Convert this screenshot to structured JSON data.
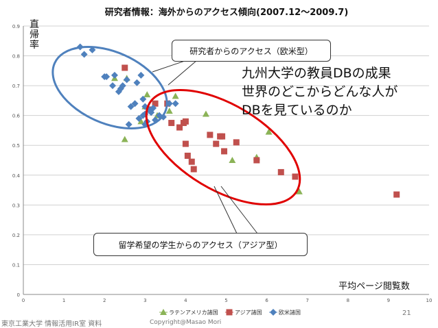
{
  "chart_data": {
    "type": "scatter",
    "title": "研究者情報：海外からのアクセス傾向(2007.12〜2009.7)",
    "ylabel": "直帰率",
    "xlabel": "平均ページ閲覧数",
    "xlim": [
      0,
      10
    ],
    "ylim": [
      0,
      0.9
    ],
    "x_ticks": [
      "0",
      "1",
      "2",
      "3",
      "4",
      "5",
      "6",
      "7",
      "8",
      "9",
      "10"
    ],
    "y_ticks": [
      "0",
      "0.1",
      "0.2",
      "0.3",
      "0.4",
      "0.5",
      "0.6",
      "0.7",
      "0.8",
      "0.9"
    ],
    "grid": "horizontal",
    "legend_position": "bottom",
    "series": [
      {
        "name": "ラテンアメリカ諸国",
        "marker": "triangle",
        "color": "#8BB357",
        "points": [
          [
            2.25,
            0.725
          ],
          [
            2.55,
            0.725
          ],
          [
            2.5,
            0.52
          ],
          [
            3.05,
            0.67
          ],
          [
            3.3,
            0.6
          ],
          [
            3.75,
            0.665
          ],
          [
            4.5,
            0.605
          ],
          [
            5.15,
            0.45
          ],
          [
            5.75,
            0.46
          ],
          [
            6.05,
            0.545
          ],
          [
            6.8,
            0.345
          ],
          [
            3.0,
            0.63
          ],
          [
            2.9,
            0.58
          ],
          [
            3.6,
            0.615
          ]
        ]
      },
      {
        "name": "アジア諸国",
        "marker": "square",
        "color": "#C0504D",
        "points": [
          [
            2.5,
            0.76
          ],
          [
            3.25,
            0.64
          ],
          [
            3.55,
            0.64
          ],
          [
            3.65,
            0.575
          ],
          [
            3.85,
            0.56
          ],
          [
            3.95,
            0.575
          ],
          [
            4.0,
            0.58
          ],
          [
            4.0,
            0.505
          ],
          [
            4.05,
            0.465
          ],
          [
            4.15,
            0.445
          ],
          [
            4.2,
            0.42
          ],
          [
            4.6,
            0.535
          ],
          [
            4.75,
            0.505
          ],
          [
            4.85,
            0.53
          ],
          [
            4.9,
            0.53
          ],
          [
            4.95,
            0.48
          ],
          [
            5.25,
            0.51
          ],
          [
            5.75,
            0.45
          ],
          [
            6.35,
            0.41
          ],
          [
            6.7,
            0.395
          ],
          [
            9.2,
            0.335
          ],
          [
            3.1,
            0.62
          ]
        ]
      },
      {
        "name": "欧米諸国",
        "marker": "diamond",
        "color": "#4F81BD",
        "points": [
          [
            1.4,
            0.83
          ],
          [
            1.5,
            0.805
          ],
          [
            1.7,
            0.82
          ],
          [
            2.0,
            0.73
          ],
          [
            2.05,
            0.73
          ],
          [
            2.2,
            0.7
          ],
          [
            2.25,
            0.735
          ],
          [
            2.35,
            0.68
          ],
          [
            2.4,
            0.69
          ],
          [
            2.45,
            0.7
          ],
          [
            2.6,
            0.57
          ],
          [
            2.8,
            0.71
          ],
          [
            2.75,
            0.64
          ],
          [
            2.95,
            0.6
          ],
          [
            3.0,
            0.63
          ],
          [
            2.95,
            0.655
          ],
          [
            3.1,
            0.62
          ],
          [
            3.15,
            0.61
          ],
          [
            3.25,
            0.585
          ],
          [
            3.35,
            0.6
          ],
          [
            3.45,
            0.595
          ],
          [
            3.6,
            0.64
          ],
          [
            3.75,
            0.64
          ],
          [
            2.9,
            0.735
          ],
          [
            3.0,
            0.57
          ],
          [
            2.85,
            0.59
          ],
          [
            2.65,
            0.63
          ],
          [
            3.2,
            0.625
          ],
          [
            3.0,
            0.605
          ],
          [
            2.55,
            0.72
          ],
          [
            3.05,
            0.58
          ]
        ]
      }
    ]
  },
  "annotations": {
    "researcher_label": "研究者からのアクセス（欧米型）",
    "student_label": "留学希望の学生からのアクセス（アジア型）",
    "headline_line1": "九州大学の教員DBの成果",
    "headline_line2": "世界のどこからどんな人が",
    "headline_line3": "DBを見ているのか",
    "researcher_ellipse_color": "#4F81BD",
    "student_ellipse_color": "#E00000"
  },
  "footer": {
    "page_number": "21",
    "source": "東京工業大学 情報活用IR室  資料",
    "copyright": "Copyright@Masao Mori"
  }
}
